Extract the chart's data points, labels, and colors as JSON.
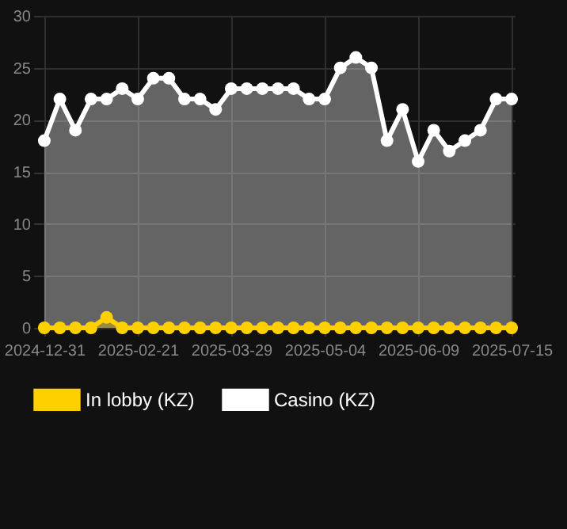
{
  "chart_data": {
    "type": "area",
    "categories": [
      "2024-12-31",
      null,
      null,
      null,
      null,
      null,
      "2025-02-21",
      null,
      null,
      null,
      null,
      null,
      "2025-03-29",
      null,
      null,
      null,
      null,
      null,
      "2025-05-04",
      null,
      null,
      null,
      null,
      null,
      "2025-06-09",
      null,
      null,
      null,
      null,
      null,
      "2025-07-15"
    ],
    "series": [
      {
        "name": "In lobby (KZ)",
        "color": "#ffd000",
        "values": [
          0,
          0,
          0,
          0,
          1,
          0,
          0,
          0,
          0,
          0,
          0,
          0,
          0,
          0,
          0,
          0,
          0,
          0,
          0,
          0,
          0,
          0,
          0,
          0,
          0,
          0,
          0,
          0,
          0,
          0,
          0
        ]
      },
      {
        "name": "Casino (KZ)",
        "color": "#ffffff",
        "values": [
          18,
          22,
          19,
          22,
          22,
          23,
          22,
          24,
          24,
          22,
          22,
          21,
          23,
          23,
          23,
          23,
          23,
          22,
          22,
          25,
          26,
          25,
          18,
          21,
          16,
          19,
          17,
          18,
          19,
          22,
          22
        ]
      }
    ],
    "ylim": [
      0,
      30
    ],
    "yticks": [
      0,
      5,
      10,
      15,
      20,
      25,
      30
    ],
    "grid": true,
    "legend": "bottom",
    "marker": "circle"
  }
}
